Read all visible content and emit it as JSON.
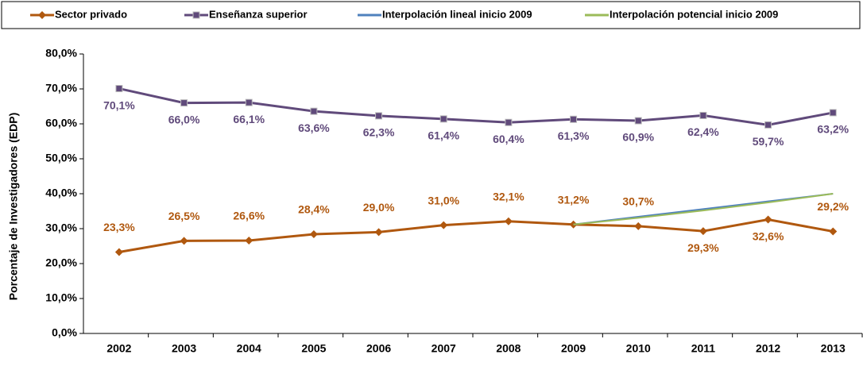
{
  "chart_data": {
    "type": "line",
    "y_label": "Porcentaje de Investigadores (EDP)",
    "categories": [
      "2002",
      "2003",
      "2004",
      "2005",
      "2006",
      "2007",
      "2008",
      "2009",
      "2010",
      "2011",
      "2012",
      "2013"
    ],
    "ylim": [
      0,
      80
    ],
    "yticks": [
      {
        "value": 0,
        "label": "0,0%"
      },
      {
        "value": 10,
        "label": "10,0%"
      },
      {
        "value": 20,
        "label": "20,0%"
      },
      {
        "value": 30,
        "label": "30,0%"
      },
      {
        "value": 40,
        "label": "40,0%"
      },
      {
        "value": 50,
        "label": "50,0%"
      },
      {
        "value": 60,
        "label": "60,0%"
      },
      {
        "value": 70,
        "label": "70,0%"
      },
      {
        "value": 80,
        "label": "80,0%"
      }
    ],
    "series": [
      {
        "name": "Sector privado",
        "color": "#b0580f",
        "marker": "diamond",
        "values": [
          23.3,
          26.5,
          26.6,
          28.4,
          29.0,
          31.0,
          32.1,
          31.2,
          30.7,
          29.3,
          32.6,
          29.2
        ],
        "value_labels": [
          "23,3%",
          "26,5%",
          "26,6%",
          "28,4%",
          "29,0%",
          "31,0%",
          "32,1%",
          "31,2%",
          "30,7%",
          "29,3%",
          "32,6%",
          "29,2%"
        ]
      },
      {
        "name": "Enseñanza superior",
        "color": "#604a7b",
        "marker": "square",
        "values": [
          70.1,
          66.0,
          66.1,
          63.6,
          62.3,
          61.4,
          60.4,
          61.3,
          60.9,
          62.4,
          59.7,
          63.2
        ],
        "value_labels": [
          "70,1%",
          "66,0%",
          "66,1%",
          "63,6%",
          "62,3%",
          "61,4%",
          "60,4%",
          "61,3%",
          "60,9%",
          "62,4%",
          "59,7%",
          "63,2%"
        ]
      },
      {
        "name": "Interpolación lineal inicio 2009",
        "color": "#4f81bd",
        "values": [
          null,
          null,
          null,
          null,
          null,
          null,
          null,
          31.2,
          33.4,
          35.6,
          37.8,
          40.0
        ]
      },
      {
        "name": "Interpolación potencial inicio 2009",
        "color": "#9bbb59",
        "values": [
          null,
          null,
          null,
          null,
          null,
          null,
          null,
          31.2,
          33.1,
          35.2,
          37.5,
          40.0
        ]
      }
    ]
  }
}
